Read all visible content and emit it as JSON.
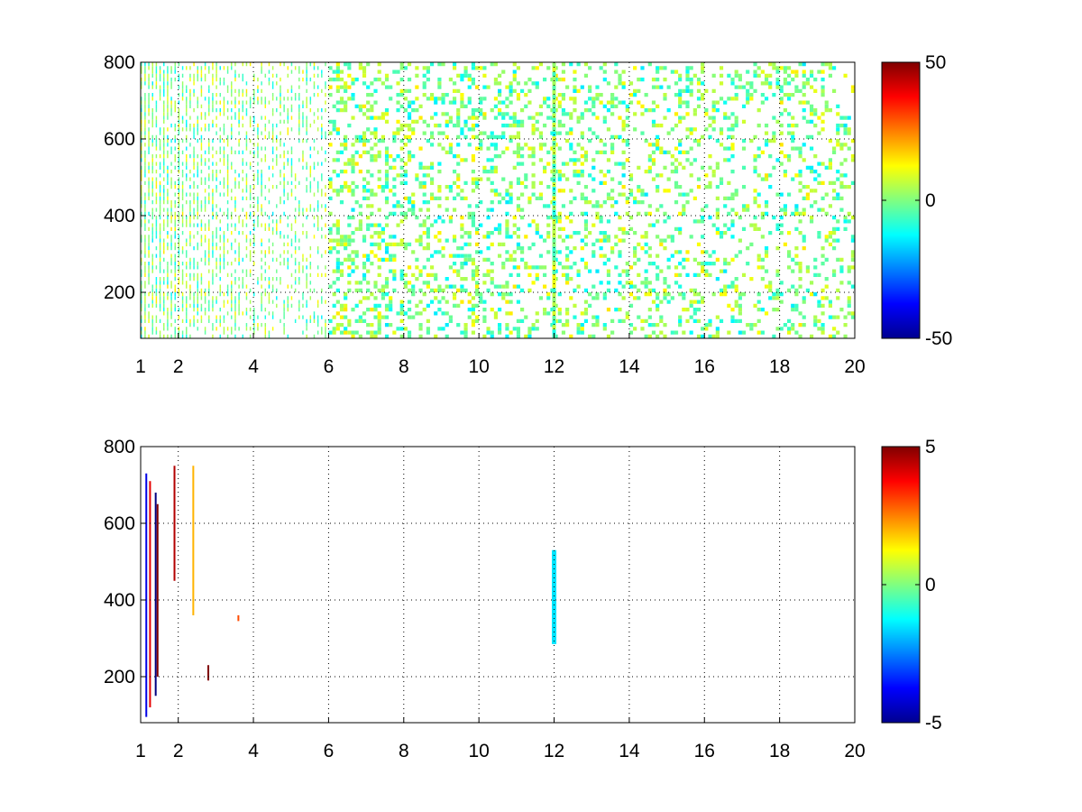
{
  "chart_data": [
    {
      "type": "heatmap",
      "title": "",
      "xlabel": "",
      "ylabel": "",
      "xlim": [
        1,
        20
      ],
      "ylim": [
        80,
        800
      ],
      "xticks": [
        1,
        2,
        4,
        6,
        8,
        10,
        12,
        14,
        16,
        18,
        20
      ],
      "yticks": [
        200,
        400,
        600,
        800
      ],
      "grid": true,
      "colormap": "jet",
      "colorbar": {
        "range": [
          -50,
          50
        ],
        "ticks": [
          -50,
          0,
          50
        ]
      },
      "pattern": "sparse scattered cells over the whole grid, denser at low x, values mostly near 0 (green/cyan/yellow), strong column at x=12",
      "highlight_columns": [
        {
          "x": 12.0,
          "y_range": [
            80,
            800
          ],
          "value_range": [
            -12,
            12
          ]
        }
      ]
    },
    {
      "type": "heatmap",
      "title": "",
      "xlabel": "",
      "ylabel": "",
      "xlim": [
        1,
        20
      ],
      "ylim": [
        80,
        800
      ],
      "xticks": [
        1,
        2,
        4,
        6,
        8,
        10,
        12,
        14,
        16,
        18,
        20
      ],
      "yticks": [
        200,
        400,
        600,
        800
      ],
      "grid": true,
      "colormap": "jet",
      "colorbar": {
        "range": [
          -5,
          5
        ],
        "ticks": [
          -5,
          0,
          5
        ]
      },
      "pattern": "almost empty; a few thin vertical streaks near x=1-3, small cluster near x=3.6, y=350, and a cyan column at x=12",
      "highlight_columns": [
        {
          "x": 12.0,
          "y_range": [
            285,
            530
          ],
          "value": -1.5
        }
      ],
      "streaks": [
        {
          "x": 1.15,
          "y_range": [
            95,
            730
          ],
          "value": -4
        },
        {
          "x": 1.25,
          "y_range": [
            120,
            710
          ],
          "value": 4
        },
        {
          "x": 1.4,
          "y_range": [
            150,
            680
          ],
          "value": -5
        },
        {
          "x": 1.45,
          "y_range": [
            200,
            650
          ],
          "value": 5
        },
        {
          "x": 1.9,
          "y_range": [
            450,
            750
          ],
          "value": 4.5
        },
        {
          "x": 2.4,
          "y_range": [
            360,
            750
          ],
          "value": 2
        },
        {
          "x": 2.8,
          "y_range": [
            190,
            230
          ],
          "value": 5
        },
        {
          "x": 3.6,
          "y_range": [
            345,
            360
          ],
          "value": 3
        }
      ]
    }
  ]
}
